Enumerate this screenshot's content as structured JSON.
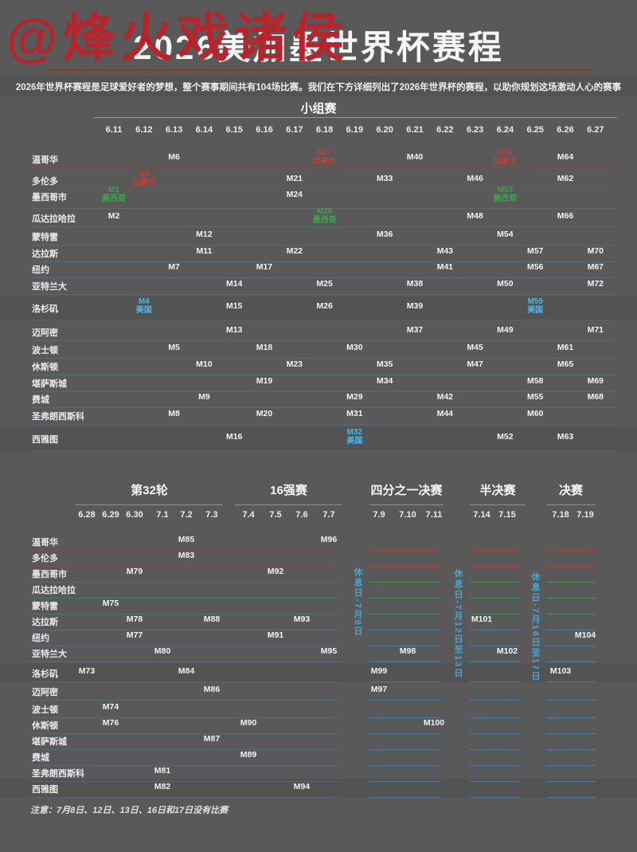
{
  "watermark": "@烽火戏诸侯",
  "header": {
    "title": "2026美加墨世界杯赛程",
    "subtitle": "2026年世界杯赛程是足球爱好者的梦想，整个赛事期间共有104场比赛。我们在下方详细列出了2026年世界杯的赛程，以助你规划这场激动人心的赛事"
  },
  "footer_note": "注意：7月8日、12日、13日、16日和17日没有比赛",
  "colors": {
    "background": "#595959",
    "watermark_red": "#b8242b",
    "title_line": "#8a3a30",
    "canada": "#c63c31",
    "mexico": "#3fa24c",
    "usa": "#4cb9e9",
    "rest_day_blue": "#3fa9dc"
  },
  "chart_data": {
    "type": "table",
    "title": "2026美加墨世界杯赛程",
    "group_stage": {
      "label": "小组赛",
      "dates": [
        "6.11",
        "6.12",
        "6.13",
        "6.14",
        "6.15",
        "6.16",
        "6.17",
        "6.18",
        "6.19",
        "6.20",
        "6.21",
        "6.22",
        "6.23",
        "6.24",
        "6.25",
        "6.26",
        "6.27"
      ],
      "rows": [
        {
          "city": "温哥华",
          "country": "CA",
          "matches": [
            [
              "6.13",
              "M6"
            ],
            [
              "6.18",
              "M27",
              "加拿大",
              "CA"
            ],
            [
              "6.21",
              "M40"
            ],
            [
              "6.24",
              "M51",
              "加拿大",
              "CA"
            ],
            [
              "6.26",
              "M64"
            ]
          ]
        },
        {
          "city": "多伦多",
          "country": "CA",
          "matches": [
            [
              "6.12",
              "M3",
              "加拿大",
              "CA"
            ],
            [
              "6.17",
              "M21"
            ],
            [
              "6.20",
              "M33"
            ],
            [
              "6.23",
              "M46"
            ],
            [
              "6.26",
              "M62"
            ]
          ]
        },
        {
          "city": "墨西哥市",
          "country": "MX",
          "matches": [
            [
              "6.11",
              "M1",
              "墨西哥",
              "MX"
            ],
            [
              "6.17",
              "M24"
            ],
            [
              "6.24",
              "M53",
              "墨西哥",
              "MX"
            ]
          ]
        },
        {
          "city": "瓜达拉哈拉",
          "country": "MX",
          "matches": [
            [
              "6.11",
              "M2"
            ],
            [
              "6.18",
              "M28",
              "墨西哥",
              "MX"
            ],
            [
              "6.23",
              "M48"
            ],
            [
              "6.26",
              "M66"
            ]
          ]
        },
        {
          "city": "蒙特雷",
          "country": "MX",
          "matches": [
            [
              "6.14",
              "M12"
            ],
            [
              "6.20",
              "M36"
            ],
            [
              "6.24",
              "M54"
            ]
          ]
        },
        {
          "city": "达拉斯",
          "country": "US",
          "matches": [
            [
              "6.14",
              "M11"
            ],
            [
              "6.17",
              "M22"
            ],
            [
              "6.22",
              "M43"
            ],
            [
              "6.25",
              "M57"
            ],
            [
              "6.27",
              "M70"
            ]
          ]
        },
        {
          "city": "纽约",
          "country": "US",
          "matches": [
            [
              "6.13",
              "M7"
            ],
            [
              "6.16",
              "M17"
            ],
            [
              "6.22",
              "M41"
            ],
            [
              "6.25",
              "M56"
            ],
            [
              "6.27",
              "M67"
            ]
          ]
        },
        {
          "city": "亚特兰大",
          "country": "US",
          "matches": [
            [
              "6.15",
              "M14"
            ],
            [
              "6.18",
              "M25"
            ],
            [
              "6.21",
              "M38"
            ],
            [
              "6.24",
              "M50"
            ],
            [
              "6.27",
              "M72"
            ]
          ]
        },
        {
          "city": "洛杉矶",
          "country": "US",
          "matches": [
            [
              "6.12",
              "M4",
              "美国",
              "US"
            ],
            [
              "6.15",
              "M15"
            ],
            [
              "6.18",
              "M26"
            ],
            [
              "6.21",
              "M39"
            ],
            [
              "6.25",
              "M59",
              "美国",
              "US"
            ]
          ]
        },
        {
          "city": "迈阿密",
          "country": "US",
          "matches": [
            [
              "6.15",
              "M13"
            ],
            [
              "6.21",
              "M37"
            ],
            [
              "6.24",
              "M49"
            ],
            [
              "6.27",
              "M71"
            ]
          ]
        },
        {
          "city": "波士顿",
          "country": "US",
          "matches": [
            [
              "6.13",
              "M5"
            ],
            [
              "6.16",
              "M18"
            ],
            [
              "6.19",
              "M30"
            ],
            [
              "6.23",
              "M45"
            ],
            [
              "6.26",
              "M61"
            ]
          ]
        },
        {
          "city": "休斯顿",
          "country": "US",
          "matches": [
            [
              "6.14",
              "M10"
            ],
            [
              "6.17",
              "M23"
            ],
            [
              "6.20",
              "M35"
            ],
            [
              "6.23",
              "M47"
            ],
            [
              "6.26",
              "M65"
            ]
          ]
        },
        {
          "city": "堪萨斯城",
          "country": "US",
          "matches": [
            [
              "6.16",
              "M19"
            ],
            [
              "6.20",
              "M34"
            ],
            [
              "6.25",
              "M58"
            ],
            [
              "6.27",
              "M69"
            ]
          ]
        },
        {
          "city": "费城",
          "country": "US",
          "matches": [
            [
              "6.14",
              "M9"
            ],
            [
              "6.19",
              "M29"
            ],
            [
              "6.22",
              "M42"
            ],
            [
              "6.25",
              "M55"
            ],
            [
              "6.27",
              "M68"
            ]
          ]
        },
        {
          "city": "圣弗朗西斯科",
          "country": "US",
          "matches": [
            [
              "6.13",
              "M8"
            ],
            [
              "6.16",
              "M20"
            ],
            [
              "6.19",
              "M31"
            ],
            [
              "6.22",
              "M44"
            ],
            [
              "6.25",
              "M60"
            ]
          ]
        },
        {
          "city": "西雅图",
          "country": "US",
          "matches": [
            [
              "6.15",
              "M16"
            ],
            [
              "6.19",
              "M32",
              "美国",
              "US"
            ],
            [
              "6.24",
              "M52"
            ],
            [
              "6.26",
              "M63"
            ]
          ]
        }
      ]
    },
    "knockout": {
      "sections": [
        {
          "label": "第32轮",
          "dates": [
            "6.28",
            "6.29",
            "6.30",
            "7.1",
            "7.2",
            "7.3"
          ]
        },
        {
          "label": "16强赛",
          "dates": [
            "7.4",
            "7.5",
            "7.6",
            "7.7"
          ]
        },
        {
          "label": "四分之一决赛",
          "dates": [
            "7.9",
            "7.10",
            "7.11"
          ]
        },
        {
          "label": "半决赛",
          "dates": [
            "7.14",
            "7.15"
          ]
        },
        {
          "label": "决赛",
          "dates": [
            "7.18",
            "7.19"
          ]
        }
      ],
      "rest_days": [
        "休息日-7月8日",
        "休息日-7月12日至13日",
        "休息日-7月16日至17日"
      ],
      "rows": [
        {
          "city": "温哥华",
          "country": "CA",
          "matches": [
            [
              "7.2",
              "M85"
            ],
            [
              "7.7",
              "M96"
            ]
          ]
        },
        {
          "city": "多伦多",
          "country": "CA",
          "matches": [
            [
              "7.2",
              "M83"
            ]
          ]
        },
        {
          "city": "墨西哥市",
          "country": "MX",
          "matches": [
            [
              "6.30",
              "M79"
            ],
            [
              "7.5",
              "M92"
            ]
          ]
        },
        {
          "city": "瓜达拉哈拉",
          "country": "MX",
          "matches": []
        },
        {
          "city": "蒙特雷",
          "country": "MX",
          "matches": [
            [
              "6.29",
              "M75"
            ]
          ]
        },
        {
          "city": "达拉斯",
          "country": "US",
          "matches": [
            [
              "6.30",
              "M78"
            ],
            [
              "7.3",
              "M88"
            ],
            [
              "7.6",
              "M93"
            ],
            [
              "7.14",
              "M101"
            ]
          ]
        },
        {
          "city": "纽约",
          "country": "US",
          "matches": [
            [
              "6.30",
              "M77"
            ],
            [
              "7.5",
              "M91"
            ],
            [
              "7.19",
              "M104"
            ]
          ]
        },
        {
          "city": "亚特兰大",
          "country": "US",
          "matches": [
            [
              "7.1",
              "M80"
            ],
            [
              "7.7",
              "M95"
            ],
            [
              "7.10",
              "M98"
            ],
            [
              "7.15",
              "M102"
            ]
          ]
        },
        {
          "city": "洛杉矶",
          "country": "US",
          "matches": [
            [
              "6.28",
              "M73"
            ],
            [
              "7.2",
              "M84"
            ],
            [
              "7.9",
              "M99"
            ],
            [
              "7.18",
              "M103"
            ]
          ]
        },
        {
          "city": "迈阿密",
          "country": "US",
          "matches": [
            [
              "7.3",
              "M86"
            ],
            [
              "7.9",
              "M97"
            ]
          ]
        },
        {
          "city": "波士顿",
          "country": "US",
          "matches": [
            [
              "6.29",
              "M74"
            ]
          ]
        },
        {
          "city": "休斯顿",
          "country": "US",
          "matches": [
            [
              "6.29",
              "M76"
            ],
            [
              "7.4",
              "M90"
            ],
            [
              "7.11",
              "M100"
            ]
          ]
        },
        {
          "city": "堪萨斯城",
          "country": "US",
          "matches": [
            [
              "7.3",
              "M87"
            ]
          ]
        },
        {
          "city": "费城",
          "country": "US",
          "matches": [
            [
              "7.4",
              "M89"
            ]
          ]
        },
        {
          "city": "圣弗朗西斯科",
          "country": "US",
          "matches": [
            [
              "7.1",
              "M81"
            ]
          ]
        },
        {
          "city": "西雅图",
          "country": "US",
          "matches": [
            [
              "7.1",
              "M82"
            ],
            [
              "7.6",
              "M94"
            ]
          ]
        }
      ]
    }
  }
}
